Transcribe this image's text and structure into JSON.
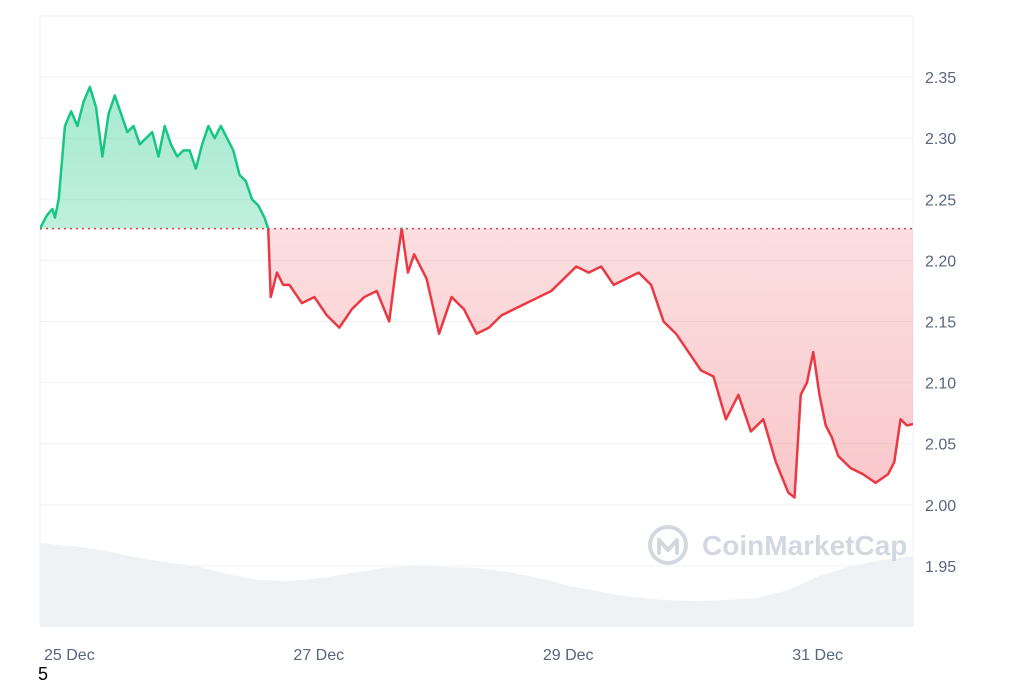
{
  "watermark": {
    "text": "CoinMarketCap"
  },
  "footnote": "5",
  "chart_data": {
    "type": "line",
    "x_axis": {
      "tick_labels": [
        "25 Dec",
        "27 Dec",
        "29 Dec",
        "31 Dec"
      ]
    },
    "y_axis": {
      "position": "right",
      "range": [
        1.9,
        2.4
      ],
      "ticks": [
        1.95,
        2.0,
        2.05,
        2.1,
        2.15,
        2.2,
        2.25,
        2.3,
        2.35
      ],
      "tick_labels": [
        "1.95",
        "2.00",
        "2.05",
        "2.10",
        "2.15",
        "2.20",
        "2.25",
        "2.30",
        "2.35"
      ]
    },
    "baseline": 2.226,
    "grid": true,
    "colors": {
      "above": "#16c784",
      "below": "#ea3943",
      "grid": "#eff2f5",
      "volume": "#eff2f5",
      "baseline": "#ea3943",
      "tick_text": "#58667e",
      "watermark": "#d3d8e0"
    },
    "series": [
      {
        "values": [
          [
            0.0,
            2.226
          ],
          [
            0.05,
            2.236
          ],
          [
            0.08,
            2.24
          ],
          [
            0.1,
            2.242
          ],
          [
            0.12,
            2.235
          ],
          [
            0.15,
            2.25
          ],
          [
            0.2,
            2.31
          ],
          [
            0.25,
            2.322
          ],
          [
            0.3,
            2.31
          ],
          [
            0.35,
            2.33
          ],
          [
            0.4,
            2.342
          ],
          [
            0.45,
            2.325
          ],
          [
            0.5,
            2.285
          ],
          [
            0.55,
            2.32
          ],
          [
            0.6,
            2.335
          ],
          [
            0.65,
            2.32
          ],
          [
            0.7,
            2.305
          ],
          [
            0.75,
            2.31
          ],
          [
            0.8,
            2.295
          ],
          [
            0.85,
            2.3
          ],
          [
            0.9,
            2.305
          ],
          [
            0.95,
            2.285
          ],
          [
            1.0,
            2.31
          ],
          [
            1.05,
            2.295
          ],
          [
            1.1,
            2.285
          ],
          [
            1.15,
            2.29
          ],
          [
            1.2,
            2.29
          ],
          [
            1.25,
            2.275
          ],
          [
            1.3,
            2.295
          ],
          [
            1.35,
            2.31
          ],
          [
            1.4,
            2.3
          ],
          [
            1.45,
            2.31
          ],
          [
            1.5,
            2.3
          ],
          [
            1.55,
            2.29
          ],
          [
            1.6,
            2.27
          ],
          [
            1.65,
            2.265
          ],
          [
            1.7,
            2.25
          ],
          [
            1.75,
            2.245
          ],
          [
            1.8,
            2.235
          ],
          [
            1.83,
            2.226
          ],
          [
            1.85,
            2.17
          ],
          [
            1.9,
            2.19
          ],
          [
            1.95,
            2.18
          ],
          [
            2.0,
            2.18
          ],
          [
            2.1,
            2.165
          ],
          [
            2.2,
            2.17
          ],
          [
            2.3,
            2.155
          ],
          [
            2.4,
            2.145
          ],
          [
            2.5,
            2.16
          ],
          [
            2.6,
            2.17
          ],
          [
            2.7,
            2.175
          ],
          [
            2.8,
            2.15
          ],
          [
            2.85,
            2.19
          ],
          [
            2.9,
            2.226
          ],
          [
            2.95,
            2.19
          ],
          [
            3.0,
            2.205
          ],
          [
            3.1,
            2.185
          ],
          [
            3.2,
            2.14
          ],
          [
            3.3,
            2.17
          ],
          [
            3.4,
            2.16
          ],
          [
            3.5,
            2.14
          ],
          [
            3.6,
            2.145
          ],
          [
            3.7,
            2.155
          ],
          [
            3.8,
            2.16
          ],
          [
            3.9,
            2.165
          ],
          [
            4.0,
            2.17
          ],
          [
            4.1,
            2.175
          ],
          [
            4.2,
            2.185
          ],
          [
            4.3,
            2.195
          ],
          [
            4.4,
            2.19
          ],
          [
            4.5,
            2.195
          ],
          [
            4.6,
            2.18
          ],
          [
            4.7,
            2.185
          ],
          [
            4.8,
            2.19
          ],
          [
            4.9,
            2.18
          ],
          [
            5.0,
            2.15
          ],
          [
            5.1,
            2.14
          ],
          [
            5.2,
            2.125
          ],
          [
            5.3,
            2.11
          ],
          [
            5.4,
            2.105
          ],
          [
            5.5,
            2.07
          ],
          [
            5.6,
            2.09
          ],
          [
            5.7,
            2.06
          ],
          [
            5.8,
            2.07
          ],
          [
            5.9,
            2.035
          ],
          [
            6.0,
            2.01
          ],
          [
            6.05,
            2.006
          ],
          [
            6.1,
            2.09
          ],
          [
            6.15,
            2.1
          ],
          [
            6.2,
            2.125
          ],
          [
            6.25,
            2.09
          ],
          [
            6.3,
            2.065
          ],
          [
            6.35,
            2.055
          ],
          [
            6.4,
            2.04
          ],
          [
            6.5,
            2.03
          ],
          [
            6.6,
            2.025
          ],
          [
            6.7,
            2.018
          ],
          [
            6.8,
            2.025
          ],
          [
            6.85,
            2.035
          ],
          [
            6.9,
            2.07
          ],
          [
            6.95,
            2.065
          ],
          [
            7.0,
            2.066
          ]
        ]
      }
    ]
  }
}
